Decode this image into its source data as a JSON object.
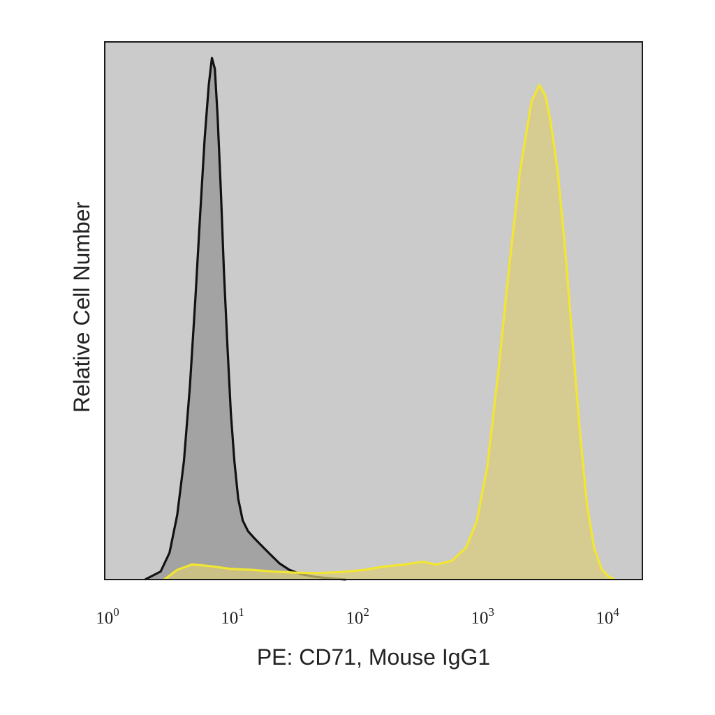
{
  "chart_data": {
    "type": "area",
    "title": "",
    "xlabel": "PE: CD71, Mouse IgG1",
    "ylabel": "Relative Cell Number",
    "x_scale": "log",
    "xlim": [
      1,
      20000
    ],
    "ylim": [
      0,
      1.0
    ],
    "x_ticks": [
      {
        "value": 1,
        "base": "10",
        "exp": "0"
      },
      {
        "value": 10,
        "base": "10",
        "exp": "1"
      },
      {
        "value": 100,
        "base": "10",
        "exp": "2"
      },
      {
        "value": 1000,
        "base": "10",
        "exp": "3"
      },
      {
        "value": 10000,
        "base": "10",
        "exp": "4"
      }
    ],
    "y_ticks": [],
    "grid": false,
    "legend": "none",
    "plot_background": "#cbcbcb",
    "series": [
      {
        "fill": "#a3a3a3",
        "stroke": "#111111",
        "points": [
          [
            2.1,
            0.0
          ],
          [
            2.8,
            0.015
          ],
          [
            3.3,
            0.05
          ],
          [
            3.8,
            0.12
          ],
          [
            4.3,
            0.22
          ],
          [
            4.8,
            0.36
          ],
          [
            5.3,
            0.52
          ],
          [
            5.8,
            0.68
          ],
          [
            6.3,
            0.82
          ],
          [
            6.8,
            0.92
          ],
          [
            7.2,
            0.97
          ],
          [
            7.6,
            0.95
          ],
          [
            8.0,
            0.86
          ],
          [
            8.5,
            0.72
          ],
          [
            9.0,
            0.57
          ],
          [
            9.6,
            0.43
          ],
          [
            10.2,
            0.31
          ],
          [
            10.9,
            0.22
          ],
          [
            11.7,
            0.15
          ],
          [
            12.7,
            0.11
          ],
          [
            14.0,
            0.09
          ],
          [
            16.0,
            0.075
          ],
          [
            18.5,
            0.06
          ],
          [
            21.5,
            0.045
          ],
          [
            25.0,
            0.03
          ],
          [
            30.0,
            0.018
          ],
          [
            37.0,
            0.01
          ],
          [
            48.0,
            0.005
          ],
          [
            65.0,
            0.002
          ],
          [
            85.0,
            0.0
          ]
        ]
      },
      {
        "fill": "#d9cc7a",
        "stroke": "#f3e631",
        "points": [
          [
            3.0,
            0.0
          ],
          [
            3.8,
            0.018
          ],
          [
            5.0,
            0.028
          ],
          [
            7.0,
            0.025
          ],
          [
            10.0,
            0.02
          ],
          [
            15.0,
            0.018
          ],
          [
            22.0,
            0.015
          ],
          [
            32.0,
            0.013
          ],
          [
            50.0,
            0.012
          ],
          [
            80.0,
            0.014
          ],
          [
            120.0,
            0.018
          ],
          [
            170.0,
            0.024
          ],
          [
            250.0,
            0.028
          ],
          [
            350.0,
            0.033
          ],
          [
            450.0,
            0.028
          ],
          [
            600.0,
            0.035
          ],
          [
            780.0,
            0.06
          ],
          [
            950.0,
            0.11
          ],
          [
            1150.0,
            0.21
          ],
          [
            1400.0,
            0.38
          ],
          [
            1700.0,
            0.57
          ],
          [
            2100.0,
            0.76
          ],
          [
            2600.0,
            0.89
          ],
          [
            3000.0,
            0.92
          ],
          [
            3350.0,
            0.9
          ],
          [
            3700.0,
            0.85
          ],
          [
            4200.0,
            0.76
          ],
          [
            4800.0,
            0.62
          ],
          [
            5500.0,
            0.45
          ],
          [
            6300.0,
            0.28
          ],
          [
            7200.0,
            0.14
          ],
          [
            8200.0,
            0.06
          ],
          [
            9400.0,
            0.02
          ],
          [
            10800.0,
            0.005
          ],
          [
            12000.0,
            0.0
          ]
        ]
      }
    ]
  }
}
